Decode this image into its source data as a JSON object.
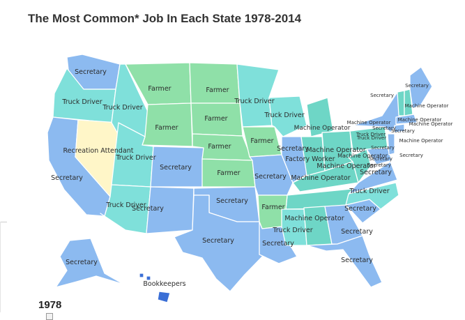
{
  "title": "The Most Common* Job In Each State 1978-2014",
  "year": "1978",
  "colors": {
    "secretary": "#8cbaf0",
    "truck_driver": "#7fe0da",
    "farmer": "#8fe0a8",
    "machine_operator": "#6ed6c6",
    "recreation_attendant": "#fff6c8",
    "bookkeepers": "#3b6fd6",
    "factory_worker": "#8cbaf0"
  },
  "labels": [
    "Secretary",
    "Farmer",
    "Farmer",
    "Truck Driver",
    "Truck Driver",
    "Truck Driver",
    "Farmer",
    "Farmer",
    "Farmer",
    "Farmer",
    "Recreation Attendant",
    "Truck Driver",
    "Secretary",
    "Secretary",
    "Farmer",
    "Secretary",
    "Secretary",
    "Secretary",
    "Truck Driver",
    "Secretary",
    "Secretary",
    "Bookkeepers",
    "Secretary",
    "Truck Driver",
    "Machine Operator",
    "Secretary",
    "Farmer",
    "Secretary",
    "Factory Worker",
    "Machine Operator",
    "Machine Operator",
    "Machine Operator",
    "Truck Driver",
    "Machine Operator",
    "Secretary",
    "Secretary",
    "Truck Driver",
    "Secretary",
    "Secretary",
    "Truck Driver",
    "Machine Operator",
    "Secretary",
    "Secretary",
    "Secretary",
    "Secretary",
    "Machine Operator",
    "Machine Operator",
    "Machine Operator",
    "Secretary",
    "Truck Driver",
    "Machine Operator",
    "Secretary",
    "Secretary",
    "Machine Operator"
  ]
}
